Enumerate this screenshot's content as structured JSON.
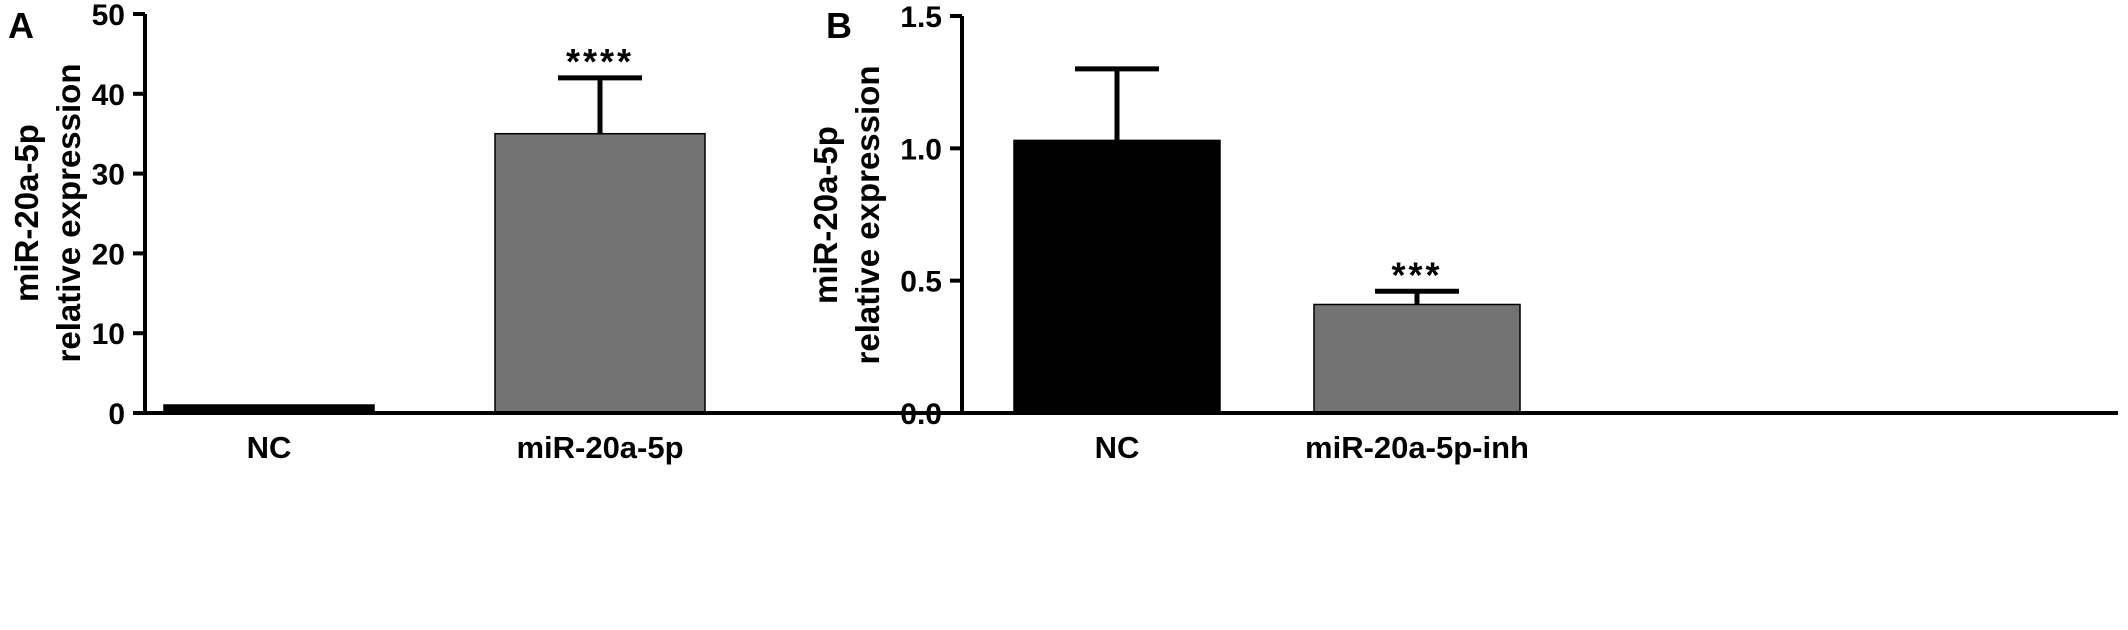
{
  "chart_data": [
    {
      "panel_label": "A",
      "type": "bar",
      "categories": [
        "NC",
        "miR-20a-5p"
      ],
      "values": [
        1.0,
        35.0
      ],
      "error_upper": [
        0.0,
        7.0
      ],
      "significance": [
        "",
        "****"
      ],
      "bar_colors": [
        "#000000",
        "#737373"
      ],
      "ylabel_lines": [
        "miR-20a-5p",
        "relative expression"
      ],
      "ylim": [
        0,
        50
      ],
      "yticks": [
        0,
        10,
        20,
        30,
        40,
        50
      ],
      "ytick_labels": [
        "0",
        "10",
        "20",
        "30",
        "40",
        "50"
      ],
      "grid": false,
      "legend": "none"
    },
    {
      "panel_label": "B",
      "type": "bar",
      "categories": [
        "NC",
        "miR-20a-5p-inh"
      ],
      "values": [
        1.03,
        0.41
      ],
      "error_upper": [
        0.27,
        0.05
      ],
      "significance": [
        "",
        "***"
      ],
      "bar_colors": [
        "#000000",
        "#737373"
      ],
      "ylabel_lines": [
        "miR-20a-5p",
        "relative expression"
      ],
      "ylim": [
        0,
        1.5
      ],
      "yticks": [
        0,
        0.5,
        1.0,
        1.5
      ],
      "ytick_labels": [
        "0.0",
        "0.5",
        "1.0",
        "1.5"
      ],
      "grid": false,
      "legend": "none"
    }
  ]
}
